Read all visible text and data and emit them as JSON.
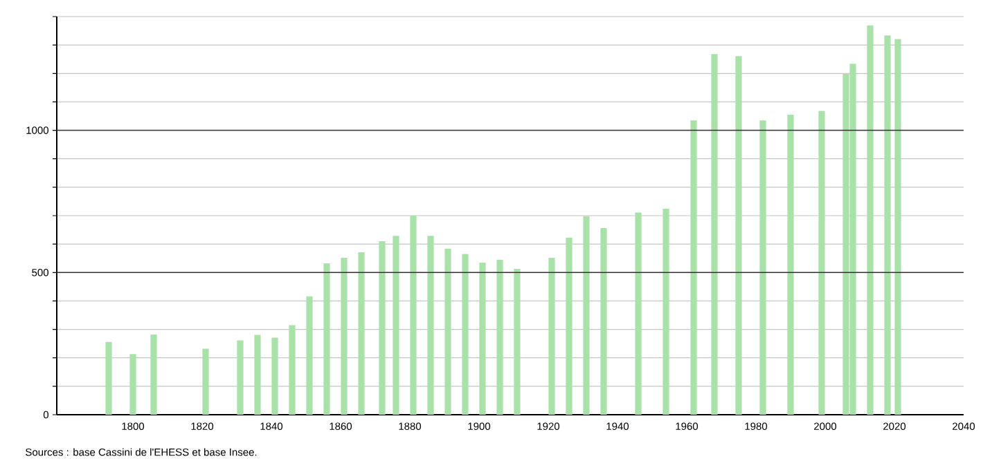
{
  "chart_data": {
    "type": "bar",
    "x": [
      1793,
      1800,
      1806,
      1821,
      1831,
      1836,
      1841,
      1846,
      1851,
      1856,
      1861,
      1866,
      1872,
      1876,
      1881,
      1886,
      1891,
      1896,
      1901,
      1906,
      1911,
      1921,
      1926,
      1931,
      1936,
      1946,
      1954,
      1962,
      1968,
      1975,
      1982,
      1990,
      1999,
      2006,
      2008,
      2013,
      2018,
      2021
    ],
    "values": [
      256,
      213,
      282,
      232,
      261,
      281,
      271,
      315,
      416,
      532,
      552,
      571,
      610,
      629,
      700,
      629,
      584,
      565,
      535,
      545,
      513,
      552,
      623,
      698,
      656,
      711,
      724,
      1035,
      1268,
      1261,
      1035,
      1055,
      1068,
      1198,
      1234,
      1369,
      1334,
      1321
    ],
    "color": "#a8e2a8",
    "xlim": [
      1778,
      2040
    ],
    "xticks": [
      1800,
      1820,
      1840,
      1860,
      1880,
      1900,
      1920,
      1940,
      1960,
      1980,
      2000,
      2020,
      2040
    ],
    "ylim": [
      0,
      1400
    ],
    "yticks": [
      0,
      {
        "value": 100,
        "label": null
      },
      {
        "value": 200,
        "label": null
      },
      {
        "value": 300,
        "label": null
      },
      {
        "value": 400,
        "label": null
      },
      500,
      {
        "value": 600,
        "label": null
      },
      {
        "value": 700,
        "label": null
      },
      {
        "value": 800,
        "label": null
      },
      {
        "value": 900,
        "label": null
      },
      1000,
      {
        "value": 1100,
        "label": null
      },
      {
        "value": 1200,
        "label": null
      },
      {
        "value": 1300,
        "label": null
      },
      {
        "value": 1400,
        "label": null
      }
    ],
    "grid": "y",
    "annotations": [
      "Sources : base Cassini de l'EHESS et base Insee."
    ]
  }
}
